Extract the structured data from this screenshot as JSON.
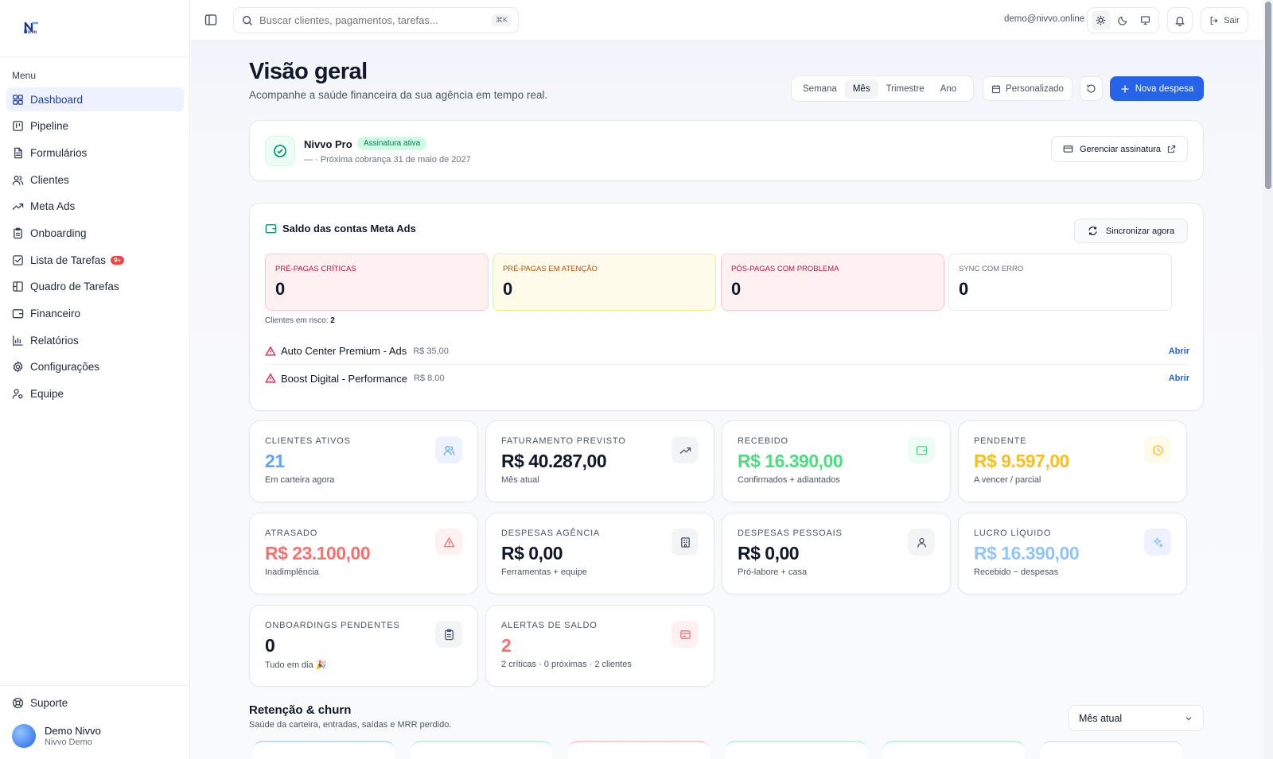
{
  "logo_text": "Nivvo",
  "sidebar": {
    "menu_label": "Menu",
    "items": [
      {
        "label": "Dashboard",
        "icon": "dashboard-icon",
        "active": true
      },
      {
        "label": "Pipeline",
        "icon": "kanban-icon"
      },
      {
        "label": "Formulários",
        "icon": "file-icon"
      },
      {
        "label": "Clientes",
        "icon": "users-icon"
      },
      {
        "label": "Meta Ads",
        "icon": "trend-icon"
      },
      {
        "label": "Onboarding",
        "icon": "clipboard-icon"
      },
      {
        "label": "Lista de Tarefas",
        "icon": "checkbox-icon",
        "badge": "9+"
      },
      {
        "label": "Quadro de Tarefas",
        "icon": "board-icon"
      },
      {
        "label": "Financeiro",
        "icon": "wallet-icon"
      },
      {
        "label": "Relatórios",
        "icon": "bar-chart-icon"
      },
      {
        "label": "Configurações",
        "icon": "gear-icon"
      },
      {
        "label": "Equipe",
        "icon": "team-icon"
      }
    ],
    "support_label": "Suporte",
    "user": {
      "name": "Demo Nivvo",
      "org": "Nivvo Demo"
    }
  },
  "topbar": {
    "search_placeholder": "Buscar clientes, pagamentos, tarefas...",
    "shortcut": "⌘K",
    "email": "demo@nivvo.online",
    "logout_label": "Sair"
  },
  "header": {
    "title": "Visão geral",
    "subtitle": "Acompanhe a saúde financeira da sua agência em tempo real.",
    "periods": [
      "Semana",
      "Mês",
      "Trimestre",
      "Ano"
    ],
    "active_period": "Mês",
    "custom_label": "Personalizado",
    "new_expense_label": "Nova despesa"
  },
  "subscription": {
    "plan": "Nivvo Pro",
    "status": "Assinatura ativa",
    "next_billing": "— · Próxima cobrança 31 de maio de 2027",
    "manage_label": "Gerenciar assinatura"
  },
  "meta": {
    "title": "Saldo das contas Meta Ads",
    "sync_label": "Sincronizar agora",
    "stats": [
      {
        "label": "PRÉ-PAGAS CRÍTICAS",
        "value": "0",
        "bg": "#fff1f2",
        "border": "#fecdd3",
        "color": "#be123c"
      },
      {
        "label": "PRÉ-PAGAS EM ATENÇÃO",
        "value": "0",
        "bg": "#fffbeb",
        "border": "#fde68a",
        "color": "#b45309"
      },
      {
        "label": "PÓS-PAGAS COM PROBLEMA",
        "value": "0",
        "bg": "#fff1f2",
        "border": "#fecdd3",
        "color": "#be123c"
      },
      {
        "label": "SYNC COM ERRO",
        "value": "0",
        "bg": "#ffffff",
        "border": "#e5e7eb",
        "color": "#6b7280"
      }
    ],
    "risk_label": "Clientes em risco:",
    "risk_count": "2",
    "risk_items": [
      {
        "name": "Auto Center Premium - Ads",
        "amount": "R$ 35,00",
        "link": "Abrir"
      },
      {
        "name": "Boost Digital - Performance",
        "amount": "R$ 8,00",
        "link": "Abrir"
      }
    ]
  },
  "kpis": [
    {
      "label": "CLIENTES ATIVOS",
      "value": "21",
      "sub": "Em carteira agora",
      "color": "#60a5fa",
      "icon": "users-icon",
      "icon_bg": "#eef2ff"
    },
    {
      "label": "FATURAMENTO PREVISTO",
      "value": "R$ 40.287,00",
      "sub": "Mês atual",
      "color": "#111827",
      "icon": "trend-icon",
      "icon_bg": "#f3f4f6"
    },
    {
      "label": "RECEBIDO",
      "value": "R$ 16.390,00",
      "sub": "Confirmados + adiantados",
      "color": "#4ade80",
      "icon": "wallet-icon",
      "icon_bg": "#ecfdf5"
    },
    {
      "label": "PENDENTE",
      "value": "R$ 9.597,00",
      "sub": "A vencer / parcial",
      "color": "#fbbf24",
      "icon": "clock-icon",
      "icon_bg": "#fffbeb"
    },
    {
      "label": "ATRASADO",
      "value": "R$ 23.100,00",
      "sub": "Inadimplência",
      "color": "#f87171",
      "icon": "alert-icon",
      "icon_bg": "#fff1f2"
    },
    {
      "label": "DESPESAS AGÊNCIA",
      "value": "R$ 0,00",
      "sub": "Ferramentas + equipe",
      "color": "#111827",
      "icon": "building-icon",
      "icon_bg": "#f3f4f6"
    },
    {
      "label": "DESPESAS PESSOAIS",
      "value": "R$ 0,00",
      "sub": "Pró-labore + casa",
      "color": "#111827",
      "icon": "user-icon",
      "icon_bg": "#f3f4f6"
    },
    {
      "label": "LUCRO LÍQUIDO",
      "value": "R$ 16.390,00",
      "sub": "Recebido − despesas",
      "color": "#93c5fd",
      "icon": "sparkles-icon",
      "icon_bg": "#eef2ff"
    },
    {
      "label": "ONBOARDINGS PENDENTES",
      "value": "0",
      "sub": "Tudo em dia 🎉",
      "color": "#111827",
      "icon": "clipboard-icon",
      "icon_bg": "#f3f4f6"
    },
    {
      "label": "ALERTAS DE SALDO",
      "value": "2",
      "sub": "2 críticas · 0 próximas · 2 clientes",
      "color": "#f87171",
      "icon": "wallet-alert-icon",
      "icon_bg": "#fff1f2"
    }
  ],
  "retention": {
    "title": "Retenção & churn",
    "subtitle": "Saúde da carteira, entradas, saídas e MRR perdido.",
    "select_value": "Mês atual"
  }
}
